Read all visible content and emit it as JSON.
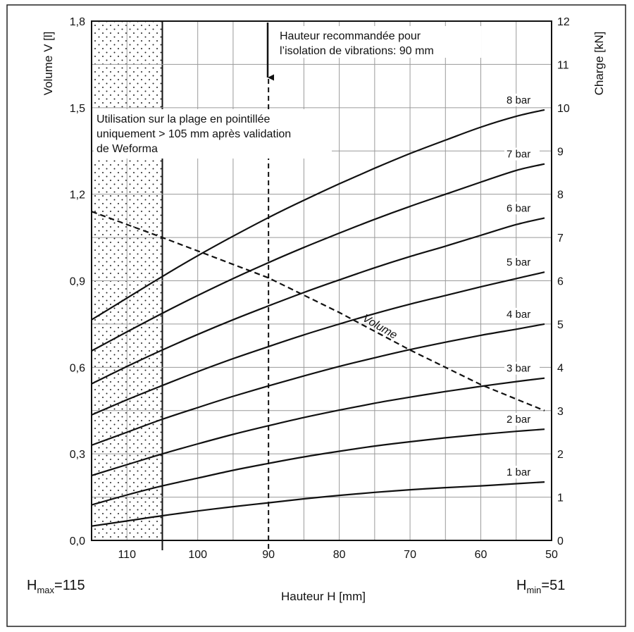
{
  "chart_data": {
    "type": "line",
    "xlabel": "Hauteur H [mm]",
    "ylabel_left": "Volume V [l]",
    "ylabel_right": "Charge [kN]",
    "x_axis": {
      "range": [
        115,
        50
      ],
      "reversed": true,
      "ticks": [
        110,
        100,
        90,
        80,
        70,
        60,
        50
      ],
      "grid_step": 5
    },
    "y_left": {
      "range": [
        0,
        1.8
      ],
      "ticks": [
        "0,0",
        "0,3",
        "0,6",
        "0,9",
        "1,2",
        "1,5",
        "1,8"
      ],
      "tick_values": [
        0,
        0.3,
        0.6,
        0.9,
        1.2,
        1.5,
        1.8
      ]
    },
    "y_right": {
      "range": [
        0,
        12
      ],
      "ticks": [
        "0",
        "1",
        "2",
        "3",
        "4",
        "5",
        "6",
        "7",
        "8",
        "9",
        "10",
        "11",
        "12"
      ],
      "tick_values": [
        0,
        1,
        2,
        3,
        4,
        5,
        6,
        7,
        8,
        9,
        10,
        11,
        12
      ]
    },
    "grid": true,
    "x": [
      115,
      110,
      105,
      100,
      95,
      90,
      85,
      80,
      75,
      70,
      65,
      60,
      55,
      51
    ],
    "series": [
      {
        "name": "1 bar",
        "axis": "right",
        "values": [
          0.33,
          0.45,
          0.57,
          0.68,
          0.78,
          0.87,
          0.96,
          1.04,
          1.11,
          1.17,
          1.22,
          1.26,
          1.31,
          1.35
        ]
      },
      {
        "name": "2 bar",
        "axis": "right",
        "values": [
          0.82,
          1.05,
          1.26,
          1.44,
          1.62,
          1.78,
          1.93,
          2.06,
          2.18,
          2.28,
          2.37,
          2.45,
          2.52,
          2.57
        ]
      },
      {
        "name": "3 bar",
        "axis": "right",
        "values": [
          1.5,
          1.75,
          2.0,
          2.23,
          2.45,
          2.65,
          2.84,
          3.01,
          3.17,
          3.31,
          3.44,
          3.56,
          3.67,
          3.75
        ]
      },
      {
        "name": "4 bar",
        "axis": "right",
        "values": [
          2.2,
          2.5,
          2.8,
          3.07,
          3.33,
          3.57,
          3.8,
          4.02,
          4.22,
          4.41,
          4.58,
          4.74,
          4.88,
          5.0
        ]
      },
      {
        "name": "5 bar",
        "axis": "right",
        "values": [
          2.9,
          3.25,
          3.58,
          3.9,
          4.2,
          4.48,
          4.75,
          5.0,
          5.24,
          5.46,
          5.66,
          5.86,
          6.05,
          6.2
        ]
      },
      {
        "name": "6 bar",
        "axis": "right",
        "values": [
          3.62,
          4.02,
          4.4,
          4.76,
          5.1,
          5.42,
          5.73,
          6.02,
          6.3,
          6.56,
          6.8,
          7.05,
          7.3,
          7.45
        ]
      },
      {
        "name": "7 bar",
        "axis": "right",
        "values": [
          4.38,
          4.82,
          5.25,
          5.66,
          6.05,
          6.42,
          6.77,
          7.1,
          7.42,
          7.72,
          8.0,
          8.28,
          8.55,
          8.7
        ]
      },
      {
        "name": "8 bar",
        "axis": "right",
        "values": [
          5.1,
          5.6,
          6.1,
          6.58,
          7.03,
          7.46,
          7.86,
          8.24,
          8.6,
          8.94,
          9.25,
          9.55,
          9.8,
          9.95
        ]
      },
      {
        "name": "Volume",
        "axis": "left",
        "style": "dashed",
        "points": [
          [
            115,
            1.14
          ],
          [
            105,
            1.05
          ],
          [
            90,
            0.91
          ],
          [
            80,
            0.79
          ],
          [
            70,
            0.66
          ],
          [
            60,
            0.54
          ],
          [
            51,
            0.45
          ]
        ]
      }
    ],
    "shaded_region": {
      "x_from": 115,
      "x_to": 105,
      "pattern": "dotted"
    },
    "reference_line": {
      "x": 90,
      "style": "dashed"
    },
    "annotations": {
      "recommended_line1": "Hauteur recommandée pour",
      "recommended_line2": "l’isolation de vibrations: 90 mm",
      "dotted_line1": "Utilisation sur la plage en pointillée",
      "dotted_line2": "uniquement > 105 mm après validation",
      "dotted_line3": "de Weforma",
      "volume_label": "Volume",
      "hmax_main": "H",
      "hmax_sub": "max",
      "hmax_value": "=115",
      "hmin_main": "H",
      "hmin_sub": "min",
      "hmin_value": "=51"
    }
  }
}
